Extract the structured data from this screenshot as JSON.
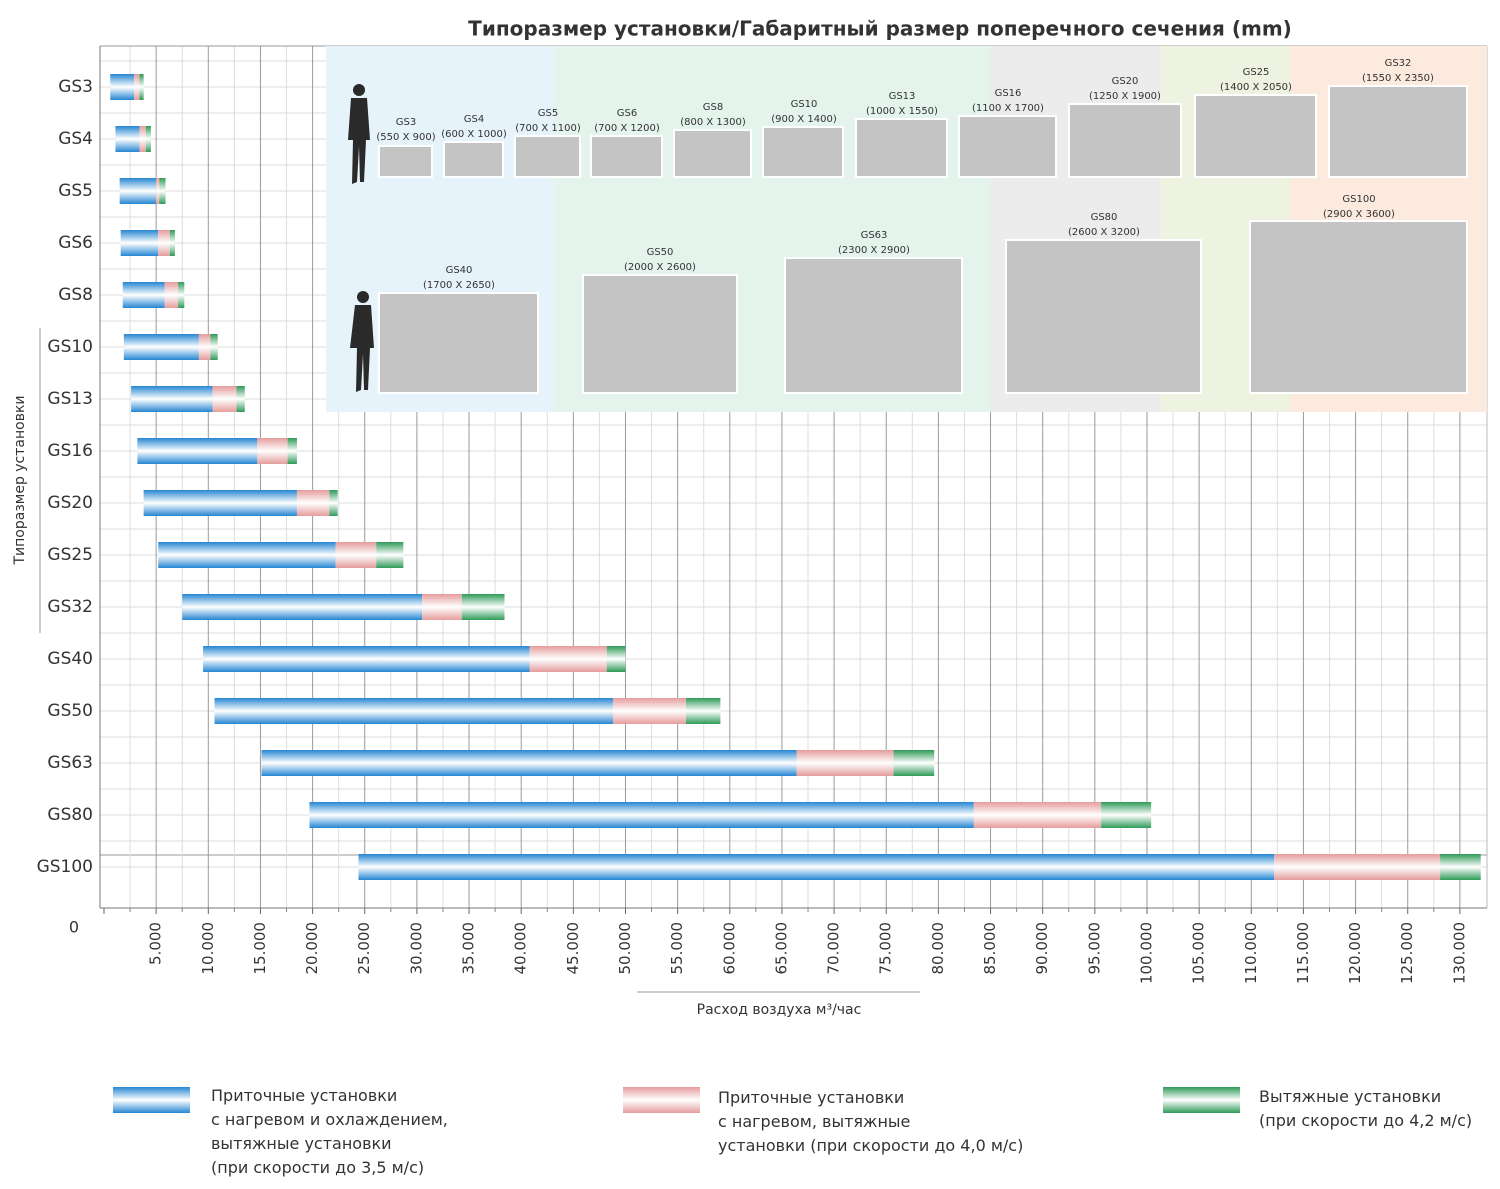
{
  "chart_data": {
    "type": "bar",
    "title": "Типоразмер установки/Габаритный размер поперечного сечения (mm)",
    "y_label": "Типоразмер установки",
    "x_label": "Расход воздуха м³/час",
    "categories": [
      "GS3",
      "GS4",
      "GS5",
      "GS6",
      "GS8",
      "GS10",
      "GS13",
      "GS16",
      "GS20",
      "GS25",
      "GS32",
      "GS40",
      "GS50",
      "GS63",
      "GS80",
      "GS100"
    ],
    "starts": [
      600,
      1100,
      1500,
      1600,
      1800,
      1900,
      2600,
      3200,
      3800,
      5200,
      7500,
      9500,
      10600,
      15100,
      19700,
      24400
    ],
    "series": [
      {
        "name": "Приточные установки\nс нагревом и охлаждением,\nвытяжные установки\n(при скорости до 3,5 м/с)",
        "color": "#2586d2",
        "values": [
          2300,
          2300,
          3500,
          3600,
          4000,
          7200,
          7800,
          11500,
          14700,
          17000,
          23000,
          31300,
          38200,
          51300,
          63700,
          87800
        ]
      },
      {
        "name": "Приточные установки\nс нагревом, вытяжные\nустановки (при скорости до 4,0 м/с)",
        "color": "#e59c9c",
        "values": [
          500,
          600,
          300,
          1100,
          1300,
          1100,
          2300,
          2900,
          3100,
          3900,
          3800,
          7400,
          7000,
          9300,
          12200,
          15900
        ]
      },
      {
        "name": "Вытяжные установки\n(при скорости до 4,2 м/с)",
        "color": "#2e9a58",
        "values": [
          400,
          500,
          600,
          500,
          600,
          700,
          800,
          900,
          800,
          2600,
          4100,
          1800,
          3300,
          3900,
          4800,
          3900
        ]
      }
    ],
    "xlim": [
      0,
      132600
    ],
    "xticks": [
      0,
      {
        "value": 5000,
        "label": "5.000"
      },
      {
        "value": 10000,
        "label": "10.000"
      },
      {
        "value": 15000,
        "label": "15.000"
      },
      {
        "value": 20000,
        "label": "20.000"
      },
      {
        "value": 25000,
        "label": "25.000"
      },
      {
        "value": 30000,
        "label": "30.000"
      },
      {
        "value": 35000,
        "label": "35.000"
      },
      {
        "value": 40000,
        "label": "40.000"
      },
      {
        "value": 45000,
        "label": "45.000"
      },
      {
        "value": 50000,
        "label": "50.000"
      },
      {
        "value": 55000,
        "label": "55.000"
      },
      {
        "value": 60000,
        "label": "60.000"
      },
      {
        "value": 65000,
        "label": "65.000"
      },
      {
        "value": 70000,
        "label": "70.000"
      },
      {
        "value": 75000,
        "label": "75.000"
      },
      {
        "value": 80000,
        "label": "80.000"
      },
      {
        "value": 85000,
        "label": "85.000"
      },
      {
        "value": 90000,
        "label": "90.000"
      },
      {
        "value": 95000,
        "label": "95.000"
      },
      {
        "value": 100000,
        "label": "100.000"
      },
      {
        "value": 105000,
        "label": "105.000"
      },
      {
        "value": 110000,
        "label": "110.000"
      },
      {
        "value": 115000,
        "label": "115.000"
      },
      {
        "value": 120000,
        "label": "120.000"
      },
      {
        "value": 125000,
        "label": "125.000"
      },
      {
        "value": 130000,
        "label": "130.000"
      }
    ],
    "grid": true,
    "inset": [
      {
        "label": "GS3",
        "size": "(550 X 900)"
      },
      {
        "label": "GS4",
        "size": "(600 X 1000)"
      },
      {
        "label": "GS5",
        "size": "(700 X 1100)"
      },
      {
        "label": "GS6",
        "size": "(700 X 1200)"
      },
      {
        "label": "GS8",
        "size": "(800 X 1300)"
      },
      {
        "label": "GS10",
        "size": "(900 X 1400)"
      },
      {
        "label": "GS13",
        "size": "(1000 X 1550)"
      },
      {
        "label": "GS16",
        "size": "(1100 X 1700)"
      },
      {
        "label": "GS20",
        "size": "(1250 X 1900)"
      },
      {
        "label": "GS25",
        "size": "(1400 X 2050)"
      },
      {
        "label": "GS32",
        "size": "(1550 X 2350)"
      },
      {
        "label": "GS40",
        "size": "(1700 X 2650)"
      },
      {
        "label": "GS50",
        "size": "(2000 X 2600)"
      },
      {
        "label": "GS63",
        "size": "(2300 X 2900)"
      },
      {
        "label": "GS80",
        "size": "(2600 X 3200)"
      },
      {
        "label": "GS100",
        "size": "(2900 X 3600)"
      }
    ]
  }
}
